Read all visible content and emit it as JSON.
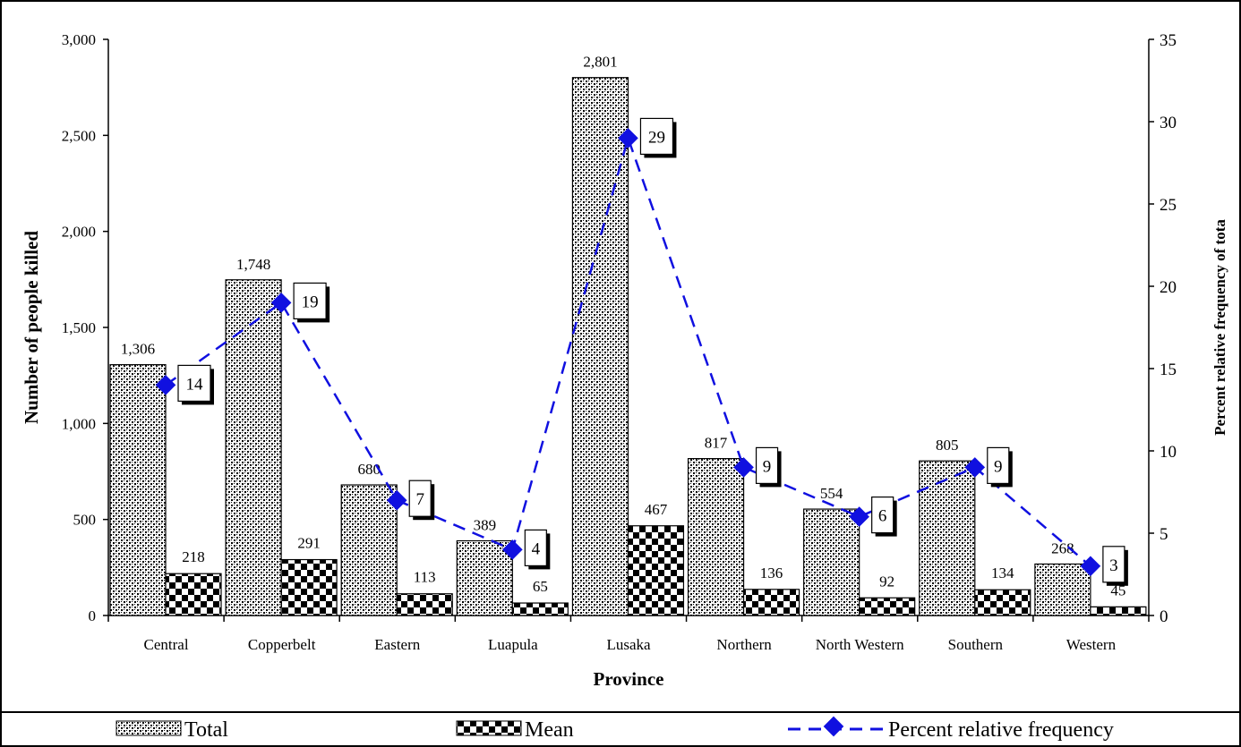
{
  "chart_data": {
    "type": "bar",
    "xlabel": "Province",
    "ylabel": "Number  of people killed",
    "y2label": "Percent relative frequency of tota",
    "ylim": [
      0,
      3000
    ],
    "y2lim": [
      0,
      35
    ],
    "yticks": [
      "0",
      "500",
      "1,000",
      "1,500",
      "2,000",
      "2,500",
      "3,000"
    ],
    "y2ticks": [
      "0",
      "5",
      "10",
      "15",
      "20",
      "25",
      "30",
      "35"
    ],
    "categories": [
      "Central",
      "Copperbelt",
      "Eastern",
      "Luapula",
      "Lusaka",
      "Northern",
      "North Western",
      "Southern",
      "Western"
    ],
    "series": [
      {
        "name": "Total",
        "kind": "bar",
        "pattern": "dots",
        "values": [
          1306,
          1748,
          680,
          389,
          2801,
          817,
          554,
          805,
          268
        ],
        "labels": [
          "1,306",
          "1,748",
          "680",
          "389",
          "2,801",
          "817",
          "554",
          "805",
          "268"
        ]
      },
      {
        "name": "Mean",
        "kind": "bar",
        "pattern": "checker",
        "values": [
          218,
          291,
          113,
          65,
          467,
          136,
          92,
          134,
          45
        ],
        "labels": [
          "218",
          "291",
          "113",
          "65",
          "467",
          "136",
          "92",
          "134",
          "45"
        ]
      },
      {
        "name": "Percent relative frequency",
        "kind": "line",
        "axis": "right",
        "color": "#1010e0",
        "values": [
          14,
          19,
          7,
          4,
          29,
          9,
          6,
          9,
          3
        ],
        "labels": [
          "14",
          "19",
          "7",
          "4",
          "29",
          "9",
          "6",
          "9",
          "3"
        ]
      }
    ],
    "grid": false,
    "legend": "bottom"
  }
}
